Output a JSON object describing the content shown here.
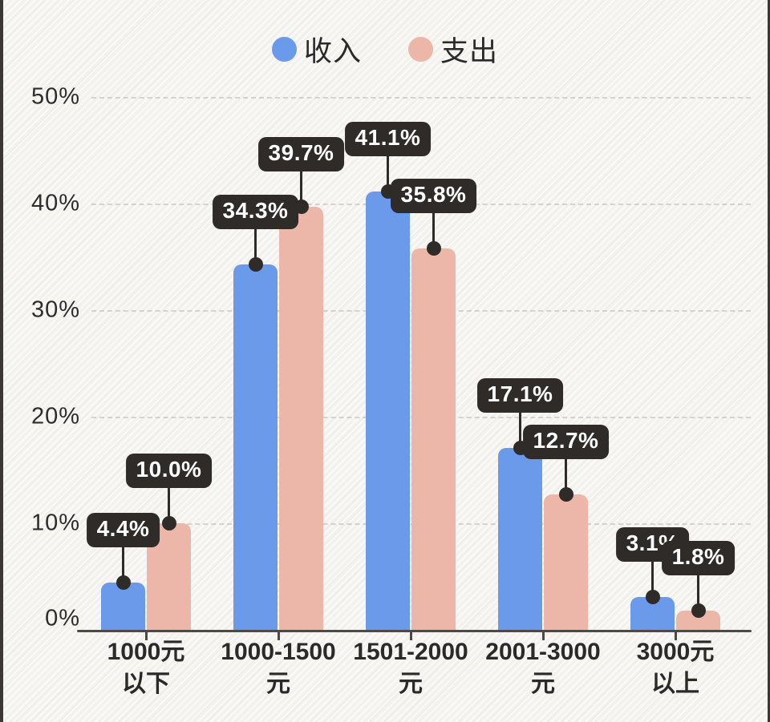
{
  "page": {
    "background_color": "#f3f2ee",
    "edge_color": "#3a3734"
  },
  "legend": {
    "items": [
      {
        "label": "收入",
        "color": "#6B9AEB"
      },
      {
        "label": "支出",
        "color": "#ECB6A9"
      }
    ]
  },
  "chart_data": {
    "type": "bar",
    "title": "",
    "xlabel": "",
    "ylabel": "",
    "categories": [
      [
        "1000元",
        "以下"
      ],
      [
        "1000-1500",
        "元"
      ],
      [
        "1501-2000",
        "元"
      ],
      [
        "2001-3000",
        "元"
      ],
      [
        "3000元",
        "以上"
      ]
    ],
    "series": [
      {
        "name": "收入",
        "key": "income",
        "color": "#6B9AEB",
        "values": [
          4.4,
          34.3,
          41.1,
          17.1,
          3.1
        ],
        "labels": [
          "4.4%",
          "34.3%",
          "41.1%",
          "17.1%",
          "3.1%"
        ]
      },
      {
        "name": "支出",
        "key": "expense",
        "color": "#ECB6A9",
        "values": [
          10.0,
          39.7,
          35.8,
          12.7,
          1.8
        ],
        "labels": [
          "10.0%",
          "39.7%",
          "35.8%",
          "12.7%",
          "1.8%"
        ]
      }
    ],
    "y_ticks": [
      "0%",
      "10%",
      "20%",
      "30%",
      "40%",
      "50%"
    ],
    "ylim": [
      0,
      50
    ],
    "grid": "horizontal-dashed",
    "legend_position": "top-center",
    "callout_bg": "#2e2b28",
    "callout_text_color": "#ffffff",
    "axis_color": "#4c4946",
    "tick_label_color": "#2e2d2b"
  }
}
